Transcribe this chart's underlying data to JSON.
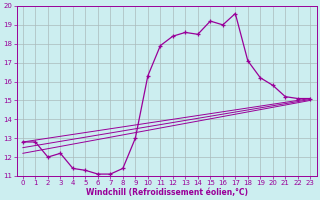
{
  "xlabel": "Windchill (Refroidissement éolien,°C)",
  "xlim": [
    -0.5,
    23.5
  ],
  "ylim": [
    11,
    20
  ],
  "xticks": [
    0,
    1,
    2,
    3,
    4,
    5,
    6,
    7,
    8,
    9,
    10,
    11,
    12,
    13,
    14,
    15,
    16,
    17,
    18,
    19,
    20,
    21,
    22,
    23
  ],
  "yticks": [
    11,
    12,
    13,
    14,
    15,
    16,
    17,
    18,
    19,
    20
  ],
  "bg_color": "#cceef0",
  "line_color": "#990099",
  "grid_color": "#aabbbb",
  "curve_x": [
    0,
    1,
    2,
    3,
    4,
    5,
    6,
    7,
    8,
    9,
    10,
    11,
    12,
    13,
    14,
    15,
    16,
    17,
    18,
    19,
    20,
    21,
    22,
    23
  ],
  "curve_y": [
    12.8,
    12.8,
    12.0,
    12.2,
    11.4,
    11.3,
    11.1,
    11.1,
    11.4,
    13.0,
    16.3,
    17.9,
    18.4,
    18.6,
    18.5,
    19.2,
    19.0,
    19.6,
    17.1,
    16.2,
    15.8,
    15.2,
    15.1,
    15.1
  ],
  "line2_x": [
    0,
    23
  ],
  "line2_y": [
    12.8,
    15.1
  ],
  "line3_x": [
    0,
    23
  ],
  "line3_y": [
    12.5,
    15.05
  ],
  "line4_x": [
    0,
    23
  ],
  "line4_y": [
    12.2,
    15.0
  ]
}
